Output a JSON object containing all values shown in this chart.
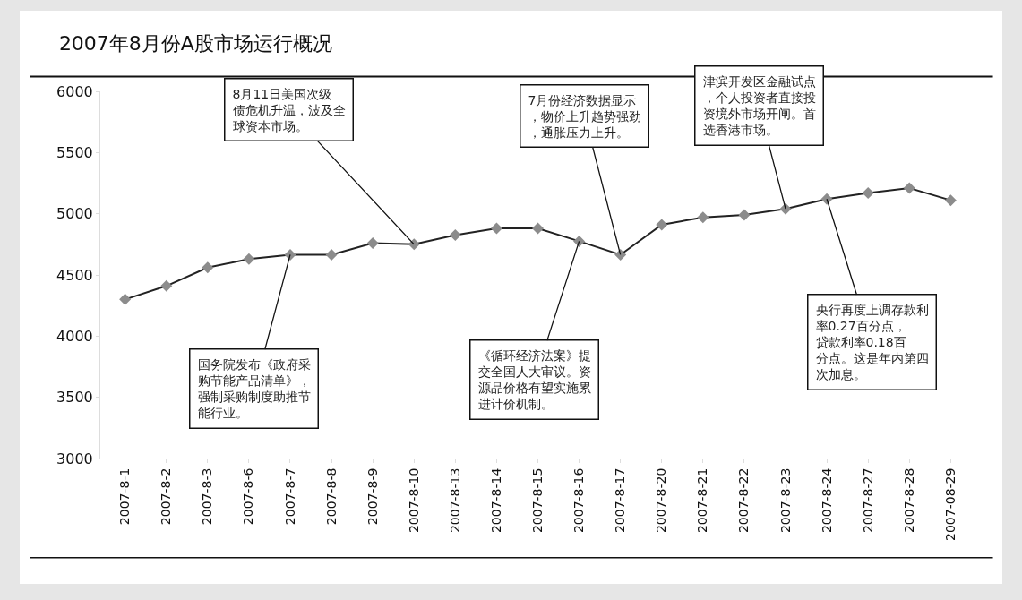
{
  "chart_data": {
    "type": "line",
    "title": "2007年8月份A股市场运行概况",
    "categories": [
      "2007-8-1",
      "2007-8-2",
      "2007-8-3",
      "2007-8-6",
      "2007-8-7",
      "2007-8-8",
      "2007-8-9",
      "2007-8-10",
      "2007-8-13",
      "2007-8-14",
      "2007-8-15",
      "2007-8-16",
      "2007-8-17",
      "2007-8-20",
      "2007-8-21",
      "2007-8-22",
      "2007-8-23",
      "2007-8-24",
      "2007-8-27",
      "2007-8-28",
      "2007-08-29"
    ],
    "series": [
      {
        "color": "#222222",
        "values": [
          4300,
          4410,
          4560,
          4630,
          4665,
          4665,
          4760,
          4750,
          4825,
          4880,
          4880,
          4775,
          4665,
          4910,
          4970,
          4990,
          5040,
          5120,
          5170,
          5210,
          5110
        ]
      }
    ],
    "ylim": [
      3000,
      6000
    ],
    "yticks": [
      3000,
      3500,
      4000,
      4500,
      5000,
      5500,
      6000
    ],
    "grid": false,
    "marker": "diamond",
    "line_style": "solid",
    "annotations": [
      {
        "text": "国务院发布《政府采购节能产品清单》，强制采购制度助推节能行业。",
        "x": "2007-8-7",
        "y": 4665
      },
      {
        "text": "8月11日美国次级债危机升温，波及全球资本市场。",
        "x": "2007-8-10",
        "y": 4750
      },
      {
        "text": "《循环经济法案》提交全国人大审议。资源品价格有望实施累进计价机制。",
        "x": "2007-8-16",
        "y": 4775
      },
      {
        "text": "7月份经济数据显示，物价上升趋势强劲，通胀压力上升。",
        "x": "2007-8-17",
        "y": 4665
      },
      {
        "text": "津滨开发区金融试点，个人投资者直接投资境外市场开闸。首选香港市场。",
        "x": "2007-8-23",
        "y": 5040
      },
      {
        "text": "央行再度上调存款利率0.27百分点，贷款利率0.18百分点。这是年内第四次加息。",
        "x": "2007-8-24",
        "y": 5120
      }
    ]
  }
}
